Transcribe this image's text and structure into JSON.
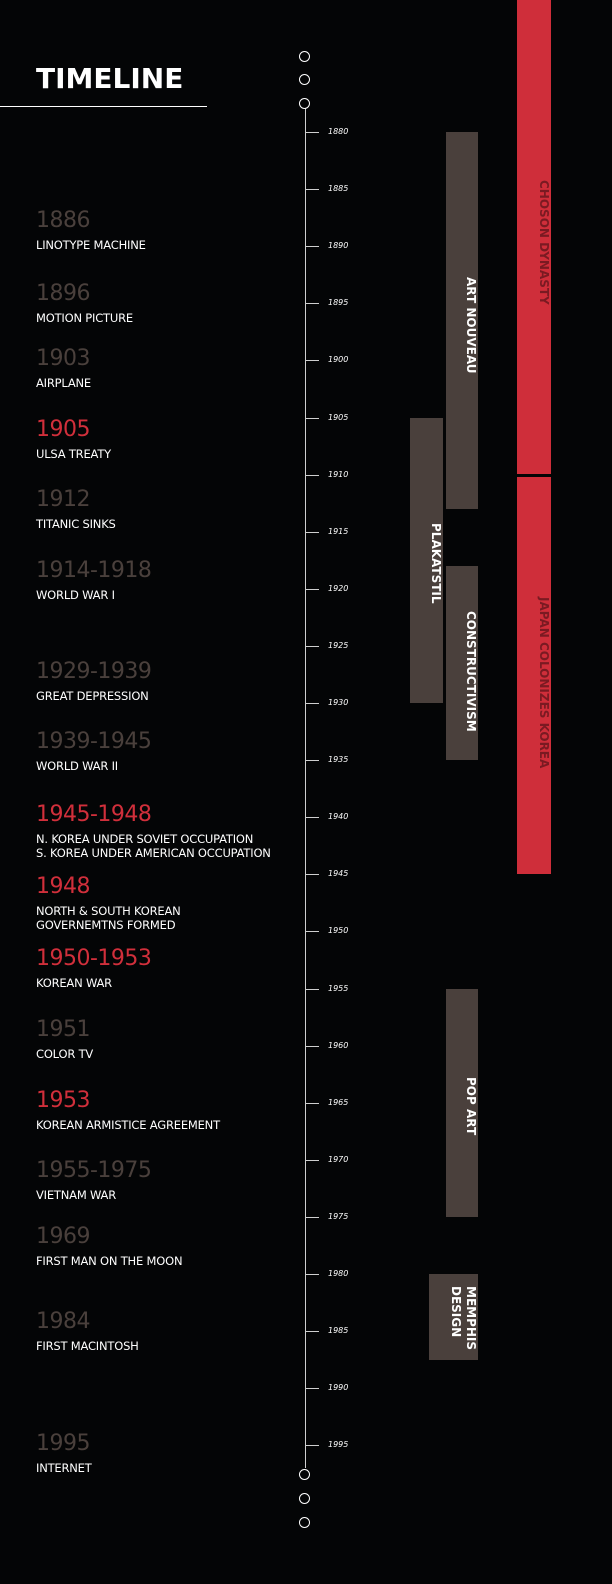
{
  "title": "TIMELINE",
  "colors": {
    "background": "#040506",
    "highlight_year": "#d12f3b",
    "muted_year": "#4a403c",
    "art_period_bar": "#4a403c",
    "political_period_bar": "#cf2e3a",
    "political_label": "#7a1a22"
  },
  "axis": {
    "ticks": [
      "1880",
      "1885",
      "1890",
      "1895",
      "1900",
      "1905",
      "1910",
      "1915",
      "1920",
      "1925",
      "1930",
      "1935",
      "1940",
      "1945",
      "1950",
      "1955",
      "1960",
      "1965",
      "1970",
      "1975",
      "1980",
      "1985",
      "1990",
      "1995"
    ]
  },
  "events": [
    {
      "year": "1886",
      "start": 1886,
      "description": "LINOTYPE MACHINE",
      "highlight": false
    },
    {
      "year": "1896",
      "start": 1896,
      "description": "MOTION PICTURE",
      "highlight": false
    },
    {
      "year": "1903",
      "start": 1903,
      "description": "AIRPLANE",
      "highlight": false
    },
    {
      "year": "1905",
      "start": 1905,
      "description": "ULSA TREATY",
      "highlight": true
    },
    {
      "year": "1912",
      "start": 1912,
      "description": "TITANIC SINKS",
      "highlight": false
    },
    {
      "year": "1914-1918",
      "start": 1914,
      "description": "WORLD WAR I",
      "highlight": false
    },
    {
      "year": "1929-1939",
      "start": 1929,
      "description": "GREAT DEPRESSION",
      "highlight": false
    },
    {
      "year": "1939-1945",
      "start": 1939,
      "description": "WORLD WAR II",
      "highlight": false
    },
    {
      "year": "1945-1948",
      "start": 1945,
      "description": "N. KOREA UNDER SOVIET OCCUPATION\nS. KOREA UNDER AMERICAN OCCUPATION",
      "highlight": true
    },
    {
      "year": "1948",
      "start": 1948,
      "description": "NORTH & SOUTH KOREAN\nGOVERNEMTNS FORMED",
      "highlight": true
    },
    {
      "year": "1950-1953",
      "start": 1950,
      "description": "KOREAN WAR",
      "highlight": true
    },
    {
      "year": "1951",
      "start": 1951,
      "description": "COLOR TV",
      "highlight": false
    },
    {
      "year": "1953",
      "start": 1953,
      "description": "KOREAN ARMISTICE AGREEMENT",
      "highlight": true
    },
    {
      "year": "1955-1975",
      "start": 1955,
      "description": "VIETNAM WAR",
      "highlight": false
    },
    {
      "year": "1969",
      "start": 1969,
      "description": "FIRST MAN ON THE MOON",
      "highlight": false
    },
    {
      "year": "1984",
      "start": 1984,
      "description": "FIRST MACINTOSH",
      "highlight": false
    },
    {
      "year": "1995",
      "start": 1995,
      "description": "INTERNET",
      "highlight": false
    }
  ],
  "art_periods": [
    {
      "name": "ART NOUVEAU",
      "start": 1880,
      "end": 1913,
      "lane": "inner"
    },
    {
      "name": "PLAKATSTIL",
      "start": 1905,
      "end": 1930,
      "lane": "outer"
    },
    {
      "name": "CONSTRUCTIVISM",
      "start": 1918,
      "end": 1935,
      "lane": "inner"
    },
    {
      "name": "POP ART",
      "start": 1955,
      "end": 1975,
      "lane": "inner"
    },
    {
      "name": "MEMPHIS\nDESIGN",
      "start": 1980,
      "end": 1987.5,
      "lane": "wide"
    }
  ],
  "political_periods": [
    {
      "name": "CHOSON DYNASTY",
      "start": 1869,
      "end": 1910
    },
    {
      "name": "JAPAN COLONIZES KOREA",
      "start": 1910,
      "end": 1945
    }
  ]
}
